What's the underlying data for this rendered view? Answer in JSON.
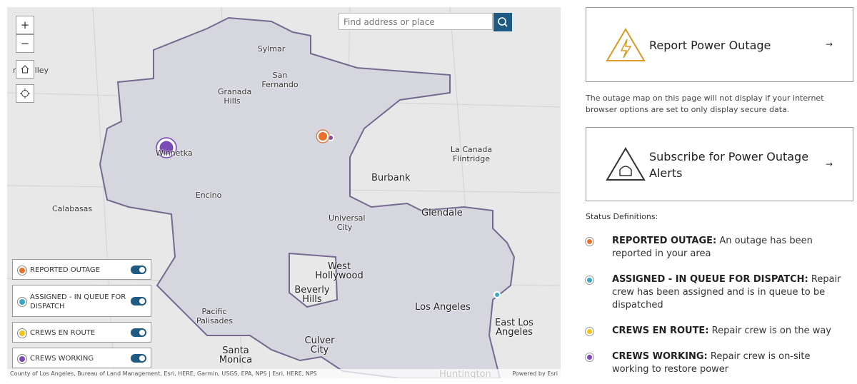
{
  "map": {
    "search_placeholder": "Find address or place",
    "zoom_in": "+",
    "zoom_out": "−",
    "place_labels": [
      "mi Valley",
      "Sylmar",
      "San Fernando",
      "Granada Hills",
      "Winnetka",
      "La Canada Flintridge",
      "Burbank",
      "Encino",
      "Calabasas",
      "Universal City",
      "Glendale",
      "West Hollywood",
      "Beverly Hills",
      "Pacific Palisades",
      "Los Angeles",
      "East Los Angeles",
      "Culver City",
      "Santa Monica",
      "Huntington"
    ],
    "legend": [
      "REPORTED OUTAGE",
      "ASSIGNED - IN QUEUE FOR DISPATCH",
      "CREWS EN ROUTE",
      "CREWS WORKING"
    ],
    "attribution": "County of Los Angeles, Bureau of Land Management, Esri, HERE, Garmin, USGS, EPA, NPS | Esri, HERE, NPS",
    "powered_by": "Powered by Esri"
  },
  "panel": {
    "report_button": {
      "label": "Report Power Outage",
      "arrow": "→"
    },
    "notice": "The outage map on this page will not display if your internet browser options are set to only display secure data.",
    "subscribe_button": {
      "label": "Subscribe for Power Outage Alerts",
      "arrow": "→"
    },
    "status_heading": "Status Definitions:",
    "statuses": [
      {
        "term": "REPORTED OUTAGE:",
        "definition": "An outage has been reported in your area"
      },
      {
        "term": "ASSIGNED - IN QUEUE FOR DISPATCH:",
        "definition": "Repair crew has been assigned and is in queue to be dispatched"
      },
      {
        "term": "CREWS EN ROUTE:",
        "definition": "Repair crew is on the way"
      },
      {
        "term": "CREWS WORKING:",
        "definition": "Repair crew is on-site working to restore power"
      }
    ]
  }
}
